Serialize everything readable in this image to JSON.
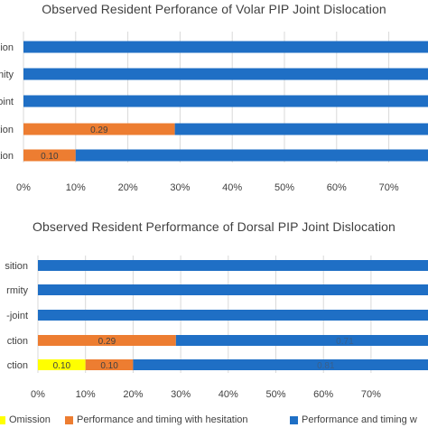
{
  "colors": {
    "omission": "#FFFF00",
    "hesitation": "#ED7D31",
    "timing": "#1F6FC5",
    "axis_text": "#404040",
    "grid": "#D9D9D9",
    "label_dark": "#404040",
    "label_on_blue": "#3A5F8A"
  },
  "chart_data": [
    {
      "type": "bar",
      "orientation": "horizontal",
      "stacked": true,
      "title": "Observed Resident Perforance of Volar PIP Joint Dislocation",
      "categories": [
        "ssion",
        "rmity",
        "joint",
        "ction",
        "ction"
      ],
      "series": [
        {
          "name": "Omission",
          "values": [
            0,
            0,
            0,
            0,
            0
          ]
        },
        {
          "name": "Performance and timing with hesitation",
          "values": [
            0,
            0,
            0,
            0.29,
            0.1
          ]
        },
        {
          "name": "Performance and timing w",
          "values": [
            1.0,
            1.0,
            1.0,
            0.71,
            0.9
          ]
        }
      ],
      "data_labels": [
        {
          "category_index": 3,
          "series": 1,
          "text": "0.29"
        },
        {
          "category_index": 4,
          "series": 1,
          "text": "0.10"
        }
      ],
      "xlim": [
        0,
        1
      ],
      "xticks": [
        "0%",
        "10%",
        "20%",
        "30%",
        "40%",
        "50%",
        "60%",
        "70%"
      ],
      "grid": true,
      "legend": "bottom"
    },
    {
      "type": "bar",
      "orientation": "horizontal",
      "stacked": true,
      "title": "Observed Resident Performance of Dorsal PIP Joint Dislocation",
      "categories": [
        "sition",
        "rmity",
        "-joint",
        "ction",
        "ction"
      ],
      "series": [
        {
          "name": "Omission",
          "values": [
            0,
            0,
            0,
            0,
            0.1
          ]
        },
        {
          "name": "Performance and timing with hesitation",
          "values": [
            0,
            0,
            0,
            0.29,
            0.1
          ]
        },
        {
          "name": "Performance and timing w",
          "values": [
            1.0,
            1.0,
            1.0,
            0.71,
            0.81
          ]
        }
      ],
      "data_labels": [
        {
          "category_index": 3,
          "series": 1,
          "text": "0.29"
        },
        {
          "category_index": 3,
          "series": 2,
          "text": "0.71"
        },
        {
          "category_index": 4,
          "series": 0,
          "text": "0.10"
        },
        {
          "category_index": 4,
          "series": 1,
          "text": "0.10"
        },
        {
          "category_index": 4,
          "series": 2,
          "text": "0.81"
        }
      ],
      "xlim": [
        0,
        1
      ],
      "xticks": [
        "0%",
        "10%",
        "20%",
        "30%",
        "40%",
        "50%",
        "60%",
        "70%"
      ],
      "grid": true,
      "legend": "bottom"
    }
  ],
  "legend": {
    "items": [
      {
        "label": "Omission",
        "series": "omission"
      },
      {
        "label": "Performance and timing with hesitation",
        "series": "hesitation"
      },
      {
        "label": "Performance and timing w",
        "series": "timing"
      }
    ]
  }
}
